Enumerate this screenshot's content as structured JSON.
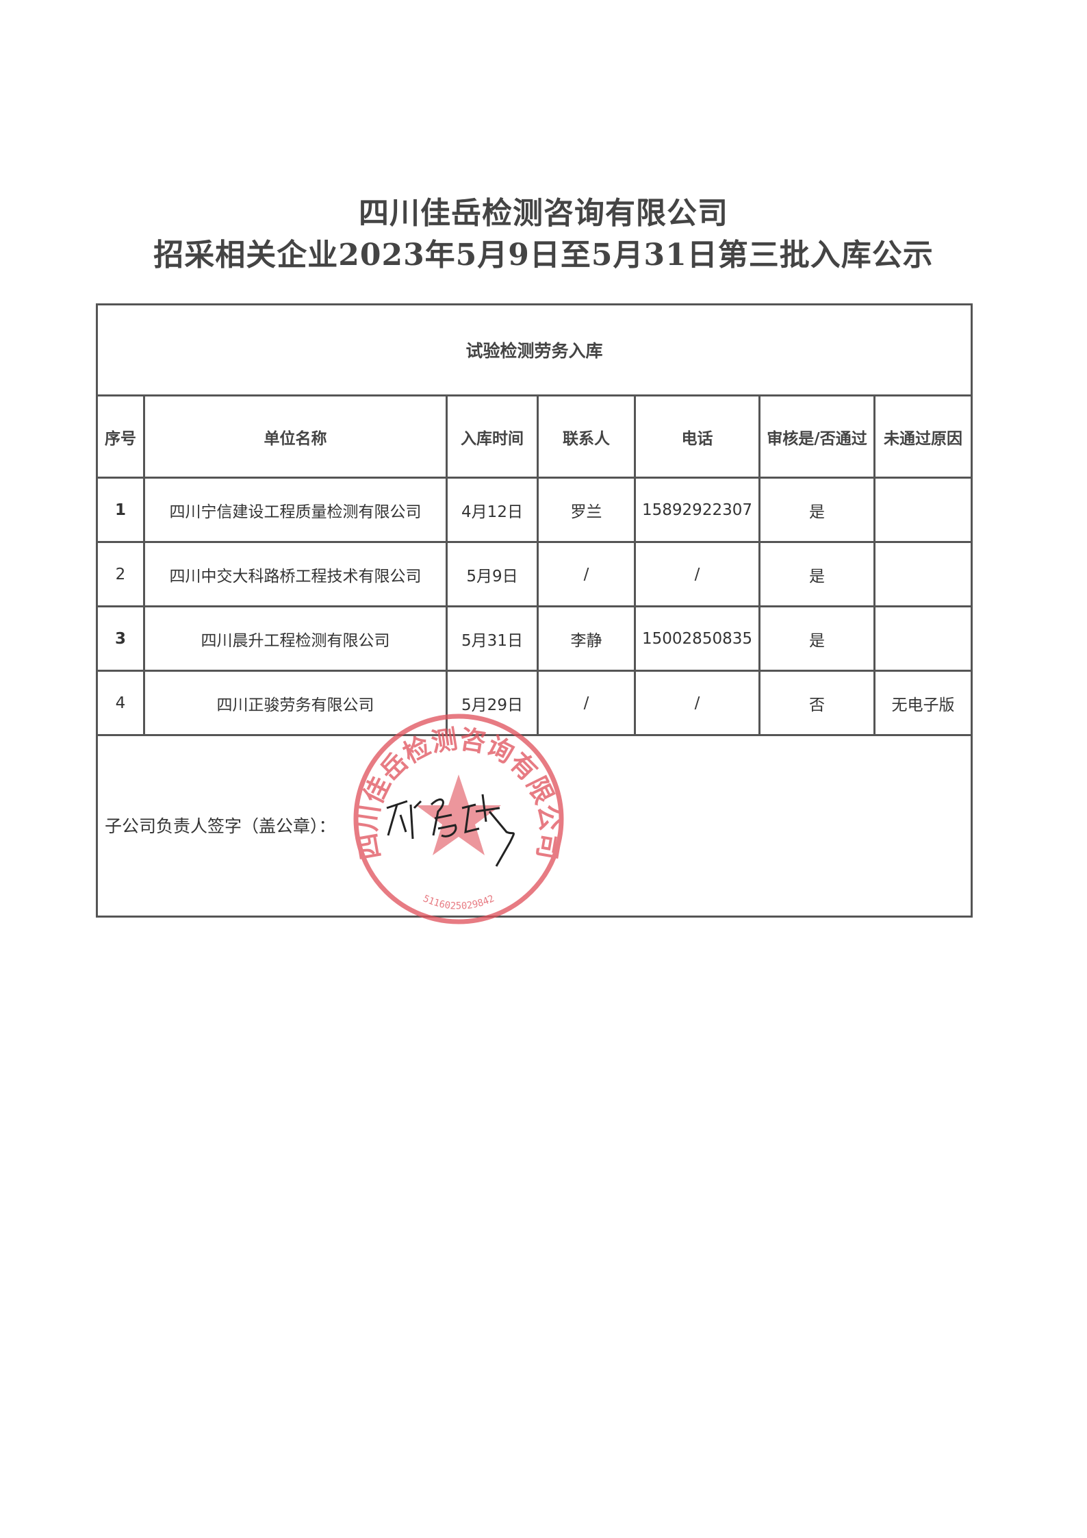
{
  "title": {
    "line1": "四川佳岳检测咨询有限公司",
    "line2": "招采相关企业2023年5月9日至5月31日第三批入库公示"
  },
  "table": {
    "section_title": "试验检测劳务入库",
    "headers": [
      "序号",
      "单位名称",
      "入库时间",
      "联系人",
      "电话",
      "审核是/否通过",
      "未通过原因"
    ],
    "rows": [
      {
        "no": "1",
        "company": "四川宁信建设工程质量检测有限公司",
        "date": "4月12日",
        "contact": "罗兰",
        "phone": "15892922307",
        "approved": "是",
        "reason": ""
      },
      {
        "no": "2",
        "company": "四川中交大科路桥工程技术有限公司",
        "date": "5月9日",
        "contact": "/",
        "phone": "/",
        "approved": "是",
        "reason": ""
      },
      {
        "no": "3",
        "company": "四川晨升工程检测有限公司",
        "date": "5月31日",
        "contact": "李静",
        "phone": "15002850835",
        "approved": "是",
        "reason": ""
      },
      {
        "no": "4",
        "company": "四川正骏劳务有限公司",
        "date": "5月29日",
        "contact": "/",
        "phone": "/",
        "approved": "否",
        "reason": "无电子版"
      }
    ],
    "signature_label": "子公司负责人签字（盖公章）："
  },
  "stamp": {
    "text": "四川佳岳检测咨询有限公司",
    "code": "5116025029842",
    "color": "#e0505a"
  }
}
